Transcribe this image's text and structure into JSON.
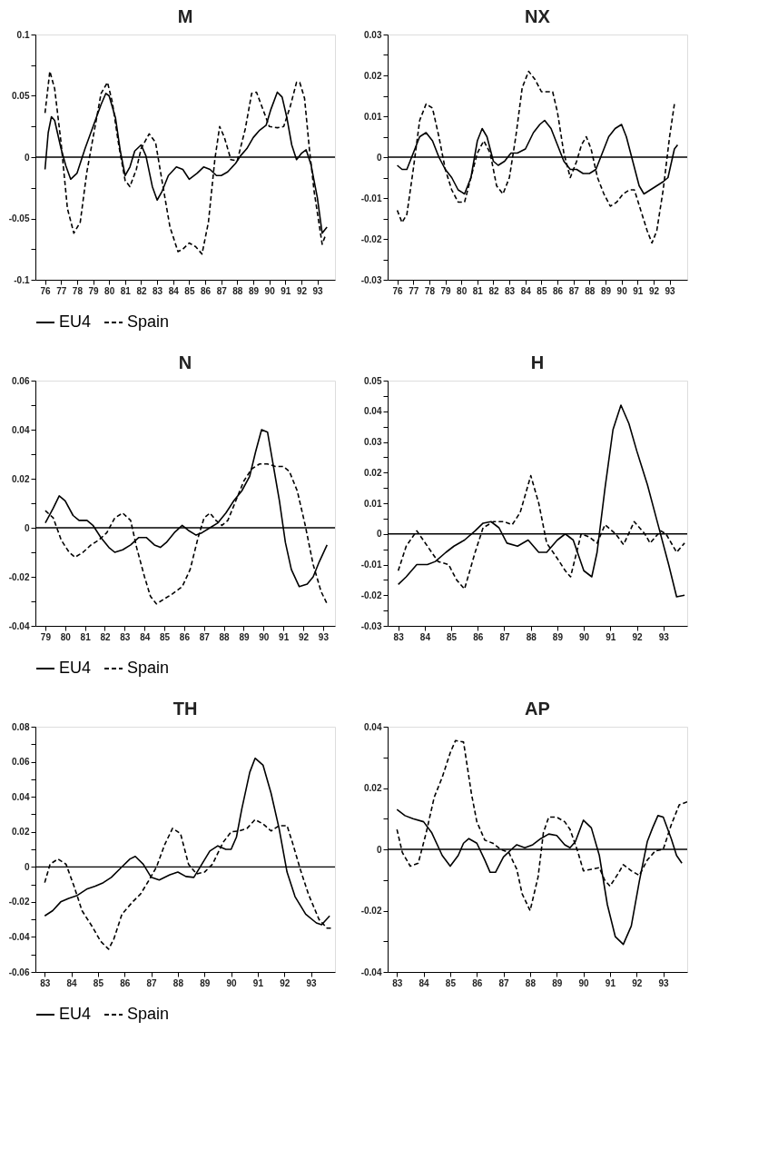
{
  "chart_data": [
    {
      "type": "line",
      "title": "M",
      "legend": "bottom",
      "xlim": [
        75.4,
        94.1
      ],
      "xticks": [
        76,
        77,
        78,
        79,
        80,
        81,
        82,
        83,
        84,
        85,
        86,
        87,
        88,
        89,
        90,
        91,
        92,
        93
      ],
      "ylim": [
        -0.1,
        0.1
      ],
      "yticks": [
        0.1,
        {
          "value": 0.075,
          "label": null
        },
        0.05,
        {
          "value": 0.025,
          "label": null
        },
        0,
        {
          "value": -0.025,
          "label": null
        },
        -0.05,
        {
          "value": -0.075,
          "label": null
        },
        -0.1
      ],
      "ref_lines": [
        {
          "axis": "y",
          "value": 0,
          "color": "#000000"
        }
      ],
      "series": [
        {
          "name": "EU4",
          "color": "#000000",
          "line_style": "solid",
          "x": [
            76.0,
            76.2,
            76.4,
            76.6,
            77,
            77.3,
            77.6,
            78,
            78.5,
            79,
            79.5,
            79.8,
            80,
            80.4,
            80.7,
            81,
            81.3,
            81.6,
            82,
            82.3,
            82.7,
            83,
            83.3,
            83.7,
            84.2,
            84.6,
            85,
            85.5,
            85.9,
            86.3,
            86.7,
            87,
            87.4,
            87.9,
            88.2,
            88.6,
            89,
            89.4,
            89.8,
            90.1,
            90.5,
            90.8,
            91.1,
            91.4,
            91.7,
            92,
            92.3,
            92.6,
            93,
            93.3,
            93.6
          ],
          "values": [
            -0.01,
            0.02,
            0.033,
            0.03,
            0.007,
            -0.007,
            -0.018,
            -0.013,
            0.007,
            0.025,
            0.043,
            0.052,
            0.05,
            0.032,
            0.005,
            -0.015,
            -0.008,
            0.005,
            0.01,
            0.001,
            -0.024,
            -0.035,
            -0.028,
            -0.015,
            -0.008,
            -0.01,
            -0.018,
            -0.013,
            -0.008,
            -0.01,
            -0.015,
            -0.015,
            -0.012,
            -0.005,
            0.001,
            0.007,
            0.016,
            0.022,
            0.026,
            0.039,
            0.053,
            0.049,
            0.032,
            0.01,
            -0.002,
            0.003,
            0.006,
            -0.006,
            -0.033,
            -0.062,
            -0.057
          ]
        },
        {
          "name": "Spain",
          "color": "#000000",
          "line_style": "dashed",
          "x": [
            76.0,
            76.3,
            76.6,
            77,
            77.4,
            77.8,
            78.2,
            78.6,
            79,
            79.5,
            79.9,
            80.2,
            80.6,
            81,
            81.3,
            81.7,
            82,
            82.5,
            82.9,
            83.3,
            83.8,
            84.3,
            84.6,
            85,
            85.4,
            85.8,
            86.2,
            86.6,
            86.9,
            87.2,
            87.6,
            88,
            88.5,
            88.9,
            89.2,
            89.6,
            90,
            90.5,
            90.9,
            91.3,
            91.7,
            91.9,
            92.2,
            92.5,
            92.8,
            93.3,
            93.5
          ],
          "values": [
            0.036,
            0.07,
            0.056,
            0.012,
            -0.042,
            -0.062,
            -0.053,
            -0.013,
            0.016,
            0.052,
            0.061,
            0.045,
            0.01,
            -0.019,
            -0.024,
            -0.01,
            0.007,
            0.019,
            0.012,
            -0.019,
            -0.057,
            -0.077,
            -0.075,
            -0.07,
            -0.073,
            -0.079,
            -0.053,
            -0.002,
            0.025,
            0.016,
            -0.002,
            -0.003,
            0.023,
            0.052,
            0.053,
            0.039,
            0.025,
            0.024,
            0.025,
            0.041,
            0.061,
            0.061,
            0.048,
            0.007,
            -0.028,
            -0.071,
            -0.064
          ]
        }
      ]
    },
    {
      "type": "line",
      "title": "NX",
      "legend": "bottom",
      "xlim": [
        75.4,
        94.1
      ],
      "xticks": [
        76,
        77,
        78,
        79,
        80,
        81,
        82,
        83,
        84,
        85,
        86,
        87,
        88,
        89,
        90,
        91,
        92,
        93
      ],
      "ylim": [
        -0.03,
        0.03
      ],
      "yticks": [
        0.03,
        {
          "value": 0.025,
          "label": null
        },
        0.02,
        {
          "value": 0.015,
          "label": null
        },
        0.01,
        {
          "value": 0.005,
          "label": null
        },
        0,
        {
          "value": -0.005,
          "label": null
        },
        -0.01,
        {
          "value": -0.015,
          "label": null
        },
        -0.02,
        {
          "value": -0.025,
          "label": null
        },
        -0.03
      ],
      "ref_lines": [
        {
          "axis": "y",
          "value": 0,
          "color": "#000000"
        }
      ],
      "series": [
        {
          "name": "EU4",
          "color": "#000000",
          "line_style": "solid",
          "x": [
            76,
            76.3,
            76.6,
            77,
            77.4,
            77.8,
            78.2,
            78.6,
            79,
            79.4,
            79.8,
            80.2,
            80.6,
            81,
            81.3,
            81.6,
            82,
            82.3,
            82.7,
            83.1,
            83.5,
            84,
            84.5,
            84.9,
            85.2,
            85.6,
            86,
            86.4,
            86.8,
            87.2,
            87.6,
            88,
            88.4,
            88.8,
            89.2,
            89.6,
            90,
            90.3,
            90.7,
            91.1,
            91.4,
            91.8,
            92.2,
            92.6,
            92.9,
            93.3,
            93.5
          ],
          "values": [
            -0.002,
            -0.003,
            -0.003,
            0.001,
            0.005,
            0.006,
            0.004,
            0,
            -0.003,
            -0.005,
            -0.008,
            -0.009,
            -0.005,
            0.004,
            0.007,
            0.005,
            -0.001,
            -0.002,
            -0.001,
            0.001,
            0.001,
            0.002,
            0.006,
            0.008,
            0.009,
            0.007,
            0.003,
            -0.001,
            -0.003,
            -0.003,
            -0.004,
            -0.004,
            -0.003,
            0.001,
            0.005,
            0.007,
            0.008,
            0.005,
            -0.001,
            -0.007,
            -0.009,
            -0.008,
            -0.007,
            -0.006,
            -0.005,
            0.002,
            0.003
          ]
        },
        {
          "name": "Spain",
          "color": "#000000",
          "line_style": "dashed",
          "x": [
            76,
            76.3,
            76.6,
            77,
            77.4,
            77.8,
            78.2,
            78.6,
            79,
            79.4,
            79.8,
            80.2,
            80.6,
            81,
            81.4,
            81.8,
            82.2,
            82.6,
            83,
            83.4,
            83.8,
            84.2,
            84.6,
            85,
            85.3,
            85.7,
            86,
            86.4,
            86.8,
            87.2,
            87.5,
            87.8,
            88.1,
            88.5,
            88.9,
            89.3,
            89.7,
            90.1,
            90.5,
            90.8,
            91.2,
            91.6,
            91.9,
            92.2,
            92.6,
            93,
            93.3
          ],
          "values": [
            -0.013,
            -0.016,
            -0.014,
            -0.003,
            0.009,
            0.013,
            0.012,
            0.005,
            -0.003,
            -0.008,
            -0.011,
            -0.011,
            -0.005,
            0.001,
            0.004,
            0.001,
            -0.007,
            -0.009,
            -0.005,
            0.005,
            0.017,
            0.021,
            0.019,
            0.016,
            0.016,
            0.016,
            0.011,
            0.001,
            -0.005,
            -0.001,
            0.003,
            0.005,
            0.002,
            -0.005,
            -0.009,
            -0.012,
            -0.011,
            -0.009,
            -0.008,
            -0.008,
            -0.013,
            -0.018,
            -0.021,
            -0.018,
            -0.008,
            0.005,
            0.013
          ]
        }
      ]
    },
    {
      "type": "line",
      "title": "N",
      "legend": "bottom",
      "xlim": [
        78.5,
        93.6
      ],
      "xticks": [
        79,
        80,
        81,
        82,
        83,
        84,
        85,
        86,
        87,
        88,
        89,
        90,
        91,
        92,
        93
      ],
      "ylim": [
        -0.04,
        0.06
      ],
      "yticks": [
        0.06,
        {
          "value": 0.05,
          "label": null
        },
        0.04,
        {
          "value": 0.03,
          "label": null
        },
        0.02,
        {
          "value": 0.01,
          "label": null
        },
        0,
        {
          "value": -0.01,
          "label": null
        },
        -0.02,
        {
          "value": -0.03,
          "label": null
        },
        -0.04
      ],
      "ref_lines": [
        {
          "axis": "y",
          "value": 0,
          "color": "#000000"
        }
      ],
      "series": [
        {
          "name": "EU4",
          "color": "#000000",
          "line_style": "solid",
          "x": [
            79,
            79.4,
            79.7,
            80,
            80.4,
            80.7,
            81.1,
            81.4,
            81.8,
            82.2,
            82.5,
            82.9,
            83.3,
            83.7,
            84.1,
            84.5,
            84.8,
            85.1,
            85.5,
            85.9,
            86.2,
            86.6,
            86.9,
            87.3,
            87.7,
            88.1,
            88.5,
            88.9,
            89.3,
            89.6,
            89.9,
            90.2,
            90.5,
            90.8,
            91.1,
            91.4,
            91.8,
            92.2,
            92.5,
            92.8,
            93.2
          ],
          "values": [
            0.002,
            0.008,
            0.013,
            0.011,
            0.005,
            0.003,
            0.003,
            0.001,
            -0.004,
            -0.008,
            -0.01,
            -0.009,
            -0.007,
            -0.004,
            -0.004,
            -0.007,
            -0.008,
            -0.006,
            -0.002,
            0.001,
            -0.001,
            -0.003,
            -0.002,
            0,
            0.002,
            0.006,
            0.011,
            0.015,
            0.021,
            0.031,
            0.04,
            0.039,
            0.025,
            0.011,
            -0.006,
            -0.017,
            -0.024,
            -0.023,
            -0.02,
            -0.014,
            -0.007
          ]
        },
        {
          "name": "Spain",
          "color": "#000000",
          "line_style": "dashed",
          "x": [
            79,
            79.4,
            79.8,
            80.2,
            80.5,
            80.9,
            81.3,
            81.7,
            82.1,
            82.5,
            82.9,
            83.3,
            83.6,
            84,
            84.3,
            84.6,
            85,
            85.4,
            85.9,
            86.3,
            86.7,
            87,
            87.3,
            87.6,
            87.9,
            88.2,
            88.6,
            89,
            89.4,
            89.8,
            90.2,
            90.6,
            91,
            91.3,
            91.7,
            92.1,
            92.5,
            92.9,
            93.2
          ],
          "values": [
            0.007,
            0.004,
            -0.005,
            -0.01,
            -0.012,
            -0.01,
            -0.007,
            -0.005,
            -0.002,
            0.004,
            0.006,
            0.003,
            -0.008,
            -0.02,
            -0.028,
            -0.031,
            -0.029,
            -0.027,
            -0.024,
            -0.017,
            -0.004,
            0.004,
            0.006,
            0.003,
            0.001,
            0.003,
            0.011,
            0.019,
            0.024,
            0.026,
            0.026,
            0.025,
            0.025,
            0.023,
            0.015,
            0.001,
            -0.015,
            -0.026,
            -0.031
          ]
        }
      ]
    },
    {
      "type": "line",
      "title": "H",
      "legend": "bottom",
      "xlim": [
        82.6,
        93.9
      ],
      "xticks": [
        83,
        84,
        85,
        86,
        87,
        88,
        89,
        90,
        91,
        92,
        93
      ],
      "ylim": [
        -0.03,
        0.05
      ],
      "yticks": [
        0.05,
        {
          "value": 0.045,
          "label": null
        },
        0.04,
        {
          "value": 0.035,
          "label": null
        },
        0.03,
        {
          "value": 0.025,
          "label": null
        },
        0.02,
        {
          "value": 0.015,
          "label": null
        },
        0.01,
        {
          "value": 0.005,
          "label": null
        },
        0,
        {
          "value": -0.005,
          "label": null
        },
        -0.01,
        {
          "value": -0.015,
          "label": null
        },
        -0.02,
        {
          "value": -0.025,
          "label": null
        },
        -0.03
      ],
      "ref_lines": [
        {
          "axis": "y",
          "value": 0,
          "color": "#000000"
        }
      ],
      "series": [
        {
          "name": "EU4",
          "color": "#000000",
          "line_style": "solid",
          "x": [
            83,
            83.3,
            83.7,
            84.1,
            84.4,
            84.8,
            85.1,
            85.5,
            85.9,
            86.2,
            86.5,
            86.8,
            87.1,
            87.5,
            87.9,
            88.3,
            88.6,
            89,
            89.3,
            89.6,
            90,
            90.3,
            90.5,
            90.8,
            91.1,
            91.4,
            91.7,
            92,
            92.4,
            92.8,
            93.2,
            93.5,
            93.8
          ],
          "values": [
            -0.0165,
            -0.014,
            -0.01,
            -0.01,
            -0.009,
            -0.006,
            -0.004,
            -0.002,
            0.001,
            0.0035,
            0.004,
            0.002,
            -0.003,
            -0.004,
            -0.002,
            -0.006,
            -0.006,
            -0.002,
            0,
            -0.002,
            -0.012,
            -0.014,
            -0.006,
            0.015,
            0.034,
            0.042,
            0.036,
            0.027,
            0.016,
            0.003,
            -0.01,
            -0.0205,
            -0.02
          ]
        },
        {
          "name": "Spain",
          "color": "#000000",
          "line_style": "dashed",
          "x": [
            83,
            83.3,
            83.7,
            84.1,
            84.5,
            84.9,
            85.2,
            85.5,
            85.9,
            86.2,
            86.6,
            87,
            87.3,
            87.6,
            88,
            88.3,
            88.6,
            89,
            89.3,
            89.5,
            89.9,
            90.2,
            90.5,
            90.8,
            91.2,
            91.5,
            91.9,
            92.3,
            92.5,
            92.9,
            93.1,
            93.5,
            93.8
          ],
          "values": [
            -0.012,
            -0.004,
            0.001,
            -0.004,
            -0.009,
            -0.01,
            -0.015,
            -0.018,
            -0.006,
            0.002,
            0.004,
            0.004,
            0.003,
            0.007,
            0.019,
            0.01,
            -0.003,
            -0.008,
            -0.012,
            -0.014,
            0,
            -0.001,
            -0.003,
            0.003,
            0,
            -0.0035,
            0.004,
            0,
            -0.003,
            0.001,
            0,
            -0.006,
            -0.003
          ]
        }
      ]
    },
    {
      "type": "line",
      "title": "TH",
      "legend": "bottom",
      "xlim": [
        82.65,
        93.9
      ],
      "xticks": [
        83,
        84,
        85,
        86,
        87,
        88,
        89,
        90,
        91,
        92,
        93
      ],
      "ylim": [
        -0.06,
        0.08
      ],
      "yticks": [
        0.08,
        {
          "value": 0.07,
          "label": null
        },
        0.06,
        {
          "value": 0.05,
          "label": null
        },
        0.04,
        {
          "value": 0.03,
          "label": null
        },
        0.02,
        {
          "value": 0.01,
          "label": null
        },
        0,
        {
          "value": -0.01,
          "label": null
        },
        -0.02,
        {
          "value": -0.03,
          "label": null
        },
        -0.04,
        {
          "value": -0.05,
          "label": null
        },
        -0.06
      ],
      "ref_lines": [
        {
          "axis": "y",
          "value": 0,
          "color": "#000000"
        }
      ],
      "series": [
        {
          "name": "EU4",
          "color": "#000000",
          "line_style": "solid",
          "x": [
            83,
            83.3,
            83.6,
            83.9,
            84.2,
            84.6,
            84.9,
            85.2,
            85.5,
            85.9,
            86.2,
            86.4,
            86.7,
            87,
            87.3,
            87.7,
            88,
            88.3,
            88.6,
            88.9,
            89.2,
            89.5,
            89.8,
            90,
            90.2,
            90.4,
            90.7,
            90.9,
            91.2,
            91.5,
            91.8,
            92.1,
            92.4,
            92.8,
            93.2,
            93.4,
            93.7
          ],
          "values": [
            -0.028,
            -0.025,
            -0.02,
            -0.018,
            -0.0165,
            -0.0125,
            -0.011,
            -0.009,
            -0.006,
            0,
            0.0045,
            0.006,
            0.0015,
            -0.006,
            -0.0075,
            -0.0045,
            -0.003,
            -0.0055,
            -0.006,
            0.0015,
            0.009,
            0.012,
            0.01,
            0.01,
            0.017,
            0.033,
            0.054,
            0.062,
            0.058,
            0.042,
            0.022,
            -0.003,
            -0.017,
            -0.027,
            -0.032,
            -0.033,
            -0.028
          ]
        },
        {
          "name": "Spain",
          "color": "#000000",
          "line_style": "dashed",
          "x": [
            83,
            83.2,
            83.5,
            83.8,
            84.1,
            84.4,
            84.8,
            85.1,
            85.4,
            85.6,
            85.9,
            86.3,
            86.6,
            86.9,
            87.2,
            87.5,
            87.8,
            88.1,
            88.4,
            88.7,
            89,
            89.3,
            89.7,
            90,
            90.3,
            90.6,
            90.9,
            91.2,
            91.5,
            91.8,
            92.1,
            92.3,
            92.6,
            92.9,
            93.3,
            93.6,
            93.8
          ],
          "values": [
            -0.009,
            0.0015,
            0.0045,
            0.0015,
            -0.011,
            -0.025,
            -0.0345,
            -0.0425,
            -0.047,
            -0.041,
            -0.027,
            -0.02,
            -0.0155,
            -0.008,
            0,
            0.0125,
            0.022,
            0.019,
            0.0015,
            -0.004,
            -0.003,
            0.0015,
            0.014,
            0.02,
            0.0205,
            0.022,
            0.027,
            0.0245,
            0.0205,
            0.0235,
            0.0235,
            0.014,
            -0.0015,
            -0.0155,
            -0.03,
            -0.035,
            -0.035
          ]
        }
      ]
    },
    {
      "type": "line",
      "title": "AP",
      "legend": "bottom",
      "xlim": [
        82.65,
        93.9
      ],
      "xticks": [
        83,
        84,
        85,
        86,
        87,
        88,
        89,
        90,
        91,
        92,
        93
      ],
      "ylim": [
        -0.04,
        0.04
      ],
      "yticks": [
        0.04,
        {
          "value": 0.03,
          "label": null
        },
        0.02,
        {
          "value": 0.01,
          "label": null
        },
        0,
        {
          "value": -0.01,
          "label": null
        },
        -0.02,
        {
          "value": -0.03,
          "label": null
        },
        -0.04
      ],
      "ref_lines": [
        {
          "axis": "y",
          "value": 0,
          "color": "#000000"
        }
      ],
      "series": [
        {
          "name": "EU4",
          "color": "#000000",
          "line_style": "solid",
          "x": [
            83,
            83.3,
            83.6,
            84,
            84.3,
            84.7,
            85,
            85.3,
            85.5,
            85.7,
            86,
            86.3,
            86.5,
            86.7,
            87,
            87.3,
            87.5,
            87.8,
            88.1,
            88.4,
            88.7,
            89,
            89.3,
            89.5,
            89.7,
            90,
            90.3,
            90.6,
            90.9,
            91.2,
            91.5,
            91.8,
            92.1,
            92.4,
            92.6,
            92.8,
            93,
            93.3,
            93.5,
            93.7
          ],
          "values": [
            0.013,
            0.011,
            0.01,
            0.009,
            0.0055,
            -0.002,
            -0.0055,
            -0.002,
            0.002,
            0.0035,
            0.002,
            -0.0035,
            -0.0075,
            -0.0075,
            -0.0025,
            0,
            0.0015,
            0.0005,
            0.0015,
            0.0035,
            0.005,
            0.0045,
            0.0015,
            0.0005,
            0.0025,
            0.0095,
            0.007,
            -0.002,
            -0.018,
            -0.0285,
            -0.031,
            -0.025,
            -0.0105,
            0.0025,
            0.007,
            0.011,
            0.0105,
            0.0035,
            -0.002,
            -0.0045
          ]
        },
        {
          "name": "Spain",
          "color": "#000000",
          "line_style": "dashed",
          "x": [
            83,
            83.2,
            83.5,
            83.8,
            84.1,
            84.4,
            84.7,
            85,
            85.2,
            85.5,
            85.8,
            86,
            86.3,
            86.6,
            86.9,
            87.2,
            87.5,
            87.7,
            88,
            88.3,
            88.5,
            88.7,
            89,
            89.3,
            89.5,
            89.8,
            90,
            90.3,
            90.6,
            90.8,
            91,
            91.3,
            91.5,
            91.8,
            92.1,
            92.4,
            92.7,
            93,
            93.3,
            93.6,
            93.9
          ],
          "values": [
            0.0065,
            -0.001,
            -0.0055,
            -0.0045,
            0.0055,
            0.017,
            0.0235,
            0.0315,
            0.0355,
            0.035,
            0.018,
            0.009,
            0.003,
            0.002,
            0,
            -0.001,
            -0.0065,
            -0.0145,
            -0.02,
            -0.009,
            0.0055,
            0.0105,
            0.0105,
            0.009,
            0.0065,
            -0.001,
            -0.007,
            -0.0065,
            -0.006,
            -0.01,
            -0.012,
            -0.008,
            -0.005,
            -0.007,
            -0.0085,
            -0.0035,
            -0.0005,
            0,
            0.008,
            0.0145,
            0.0155
          ]
        }
      ]
    }
  ]
}
